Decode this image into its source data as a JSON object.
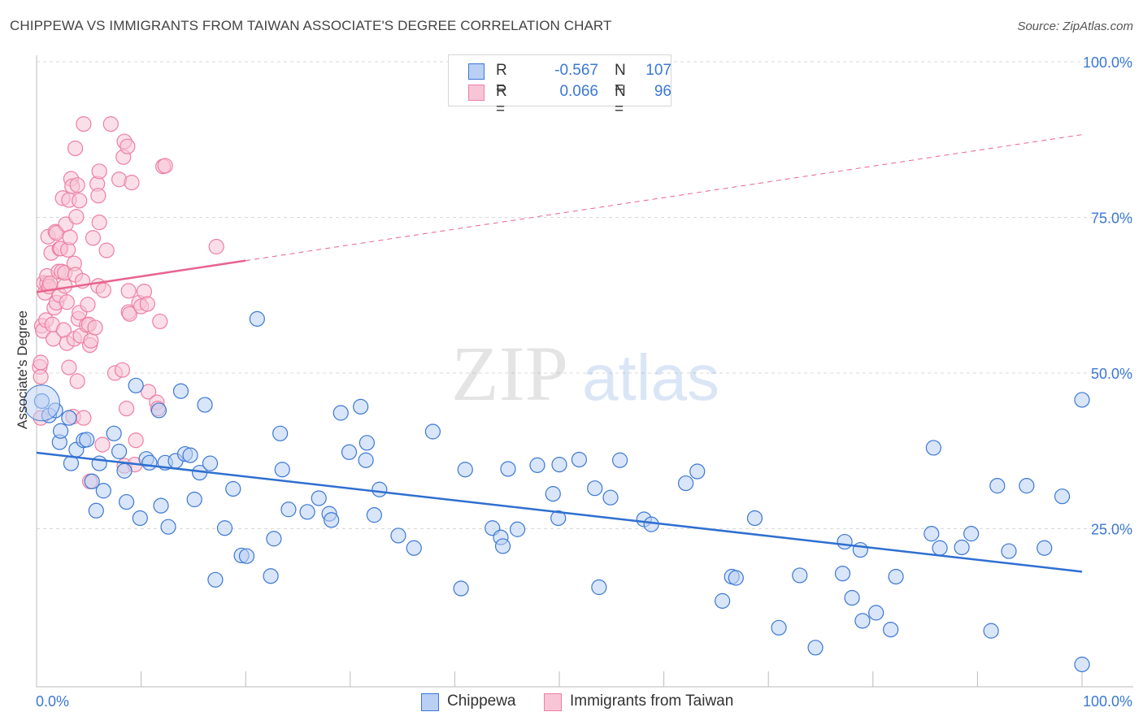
{
  "header": {
    "title": "CHIPPEWA VS IMMIGRANTS FROM TAIWAN ASSOCIATE'S DEGREE CORRELATION CHART",
    "source": "Source: ZipAtlas.com"
  },
  "legend": {
    "rows": [
      {
        "r_label": "R =",
        "r_value": "-0.567",
        "n_label": "N =",
        "n_value": "107"
      },
      {
        "r_label": "R =",
        "r_value": "0.066",
        "n_label": "N =",
        "n_value": "96"
      }
    ]
  },
  "watermark": {
    "zip": "ZIP",
    "atlas": "atlas"
  },
  "colors": {
    "blue": "#3b78d4",
    "blue_fill": "#b9d0f4",
    "blue_line": "#2f6fd0",
    "pink": "#ee7fa3",
    "pink_fill": "#f8c5d6",
    "pink_line": "#e8648f",
    "grid": "#d9d9d9",
    "axis_label": "#3b78d4"
  },
  "chart_data": {
    "type": "scatter",
    "title": "CHIPPEWA VS IMMIGRANTS FROM TAIWAN ASSOCIATE'S DEGREE CORRELATION CHART",
    "xlabel": "",
    "ylabel": "Associate's Degree",
    "xlim": [
      0,
      100
    ],
    "ylim": [
      0,
      105
    ],
    "x_tick_labels": [
      "0.0%",
      "100.0%"
    ],
    "y_ticks": [
      25,
      50,
      75,
      100
    ],
    "y_tick_labels": [
      "25.0%",
      "50.0%",
      "75.0%",
      "100.0%"
    ],
    "grid": true,
    "legend_position": "top-center",
    "series": [
      {
        "name": "Chippewa",
        "r": -0.567,
        "n": 107,
        "trend": {
          "x": [
            0,
            100
          ],
          "y": [
            37.2,
            18.1
          ],
          "dashed_from": null
        },
        "points": [
          [
            0.5,
            45.5
          ],
          [
            1.2,
            43.2
          ],
          [
            2.2,
            38.9
          ],
          [
            2.3,
            40.7
          ],
          [
            3.1,
            42.8
          ],
          [
            3.3,
            35.5
          ],
          [
            3.8,
            37.7
          ],
          [
            4.5,
            39.2
          ],
          [
            4.8,
            39.3
          ],
          [
            5.3,
            32.6
          ],
          [
            5.7,
            27.9
          ],
          [
            6.4,
            31.1
          ],
          [
            7.4,
            40.3
          ],
          [
            7.9,
            37.4
          ],
          [
            8.4,
            34.3
          ],
          [
            8.6,
            29.3
          ],
          [
            9.5,
            48.0
          ],
          [
            9.9,
            26.7
          ],
          [
            10.5,
            36.2
          ],
          [
            10.8,
            35.6
          ],
          [
            11.7,
            44.0
          ],
          [
            11.9,
            28.7
          ],
          [
            12.3,
            35.6
          ],
          [
            12.6,
            25.3
          ],
          [
            13.3,
            35.9
          ],
          [
            13.8,
            47.1
          ],
          [
            14.2,
            37.0
          ],
          [
            14.7,
            36.8
          ],
          [
            15.1,
            29.7
          ],
          [
            15.6,
            34.0
          ],
          [
            16.1,
            44.9
          ],
          [
            16.6,
            35.5
          ],
          [
            17.1,
            16.8
          ],
          [
            18.0,
            25.1
          ],
          [
            18.8,
            31.4
          ],
          [
            19.6,
            20.7
          ],
          [
            20.1,
            20.6
          ],
          [
            21.1,
            58.7
          ],
          [
            22.4,
            17.4
          ],
          [
            22.7,
            23.4
          ],
          [
            23.3,
            40.3
          ],
          [
            23.5,
            34.5
          ],
          [
            24.1,
            28.1
          ],
          [
            25.9,
            27.7
          ],
          [
            27.0,
            29.9
          ],
          [
            28.0,
            27.4
          ],
          [
            28.2,
            26.4
          ],
          [
            29.1,
            43.6
          ],
          [
            29.9,
            37.3
          ],
          [
            31.0,
            44.6
          ],
          [
            31.5,
            36.0
          ],
          [
            31.6,
            38.8
          ],
          [
            32.3,
            27.2
          ],
          [
            32.8,
            31.3
          ],
          [
            34.6,
            23.9
          ],
          [
            36.1,
            21.9
          ],
          [
            37.9,
            40.6
          ],
          [
            40.6,
            15.4
          ],
          [
            41.0,
            34.5
          ],
          [
            43.6,
            25.1
          ],
          [
            44.4,
            23.6
          ],
          [
            44.6,
            22.2
          ],
          [
            45.1,
            34.6
          ],
          [
            46.0,
            24.9
          ],
          [
            47.9,
            35.2
          ],
          [
            49.4,
            30.6
          ],
          [
            49.9,
            26.7
          ],
          [
            50.0,
            35.3
          ],
          [
            51.9,
            36.1
          ],
          [
            53.4,
            31.5
          ],
          [
            53.8,
            15.6
          ],
          [
            54.9,
            30.0
          ],
          [
            55.8,
            36.0
          ],
          [
            58.1,
            26.5
          ],
          [
            58.8,
            25.7
          ],
          [
            62.1,
            32.3
          ],
          [
            63.2,
            34.2
          ],
          [
            65.6,
            13.4
          ],
          [
            66.5,
            17.3
          ],
          [
            66.9,
            17.1
          ],
          [
            68.7,
            26.7
          ],
          [
            71.0,
            9.1
          ],
          [
            73.0,
            17.5
          ],
          [
            74.5,
            5.9
          ],
          [
            77.1,
            17.8
          ],
          [
            77.3,
            22.9
          ],
          [
            78.0,
            13.9
          ],
          [
            78.8,
            21.6
          ],
          [
            79.0,
            10.2
          ],
          [
            80.3,
            11.5
          ],
          [
            81.7,
            8.8
          ],
          [
            82.2,
            17.3
          ],
          [
            85.6,
            24.2
          ],
          [
            85.8,
            38.0
          ],
          [
            86.4,
            21.9
          ],
          [
            88.5,
            22.0
          ],
          [
            89.4,
            24.2
          ],
          [
            91.3,
            8.6
          ],
          [
            91.9,
            31.9
          ],
          [
            93.0,
            21.4
          ],
          [
            94.7,
            31.9
          ],
          [
            96.4,
            21.9
          ],
          [
            98.1,
            30.2
          ],
          [
            100.0,
            3.2
          ],
          [
            100.0,
            45.7
          ],
          [
            1.8,
            44.0
          ],
          [
            6.0,
            35.5
          ]
        ]
      },
      {
        "name": "Immigrants from Taiwan",
        "r": 0.066,
        "n": 96,
        "trend": {
          "x": [
            0,
            100
          ],
          "y": [
            63.0,
            88.3
          ],
          "solid_to_x": 20
        },
        "points": [
          [
            0.4,
            42.8
          ],
          [
            0.3,
            51.0
          ],
          [
            0.4,
            51.7
          ],
          [
            0.4,
            49.4
          ],
          [
            0.5,
            57.6
          ],
          [
            0.6,
            56.8
          ],
          [
            0.8,
            62.9
          ],
          [
            0.7,
            64.5
          ],
          [
            0.9,
            58.5
          ],
          [
            1.0,
            64.4
          ],
          [
            1.1,
            71.9
          ],
          [
            1.0,
            65.6
          ],
          [
            1.2,
            63.9
          ],
          [
            1.3,
            64.4
          ],
          [
            1.4,
            69.3
          ],
          [
            1.5,
            57.8
          ],
          [
            1.6,
            55.5
          ],
          [
            1.7,
            60.5
          ],
          [
            1.8,
            72.7
          ],
          [
            1.9,
            61.3
          ],
          [
            1.9,
            72.5
          ],
          [
            2.1,
            66.3
          ],
          [
            2.2,
            70.0
          ],
          [
            2.2,
            62.5
          ],
          [
            2.3,
            70.0
          ],
          [
            2.4,
            66.3
          ],
          [
            2.5,
            78.1
          ],
          [
            2.6,
            56.9
          ],
          [
            2.7,
            64.0
          ],
          [
            2.7,
            66.1
          ],
          [
            2.8,
            73.9
          ],
          [
            2.9,
            61.4
          ],
          [
            2.9,
            54.8
          ],
          [
            3.0,
            69.8
          ],
          [
            3.1,
            77.8
          ],
          [
            3.1,
            50.9
          ],
          [
            3.2,
            71.8
          ],
          [
            3.3,
            81.2
          ],
          [
            3.4,
            80.0
          ],
          [
            3.5,
            43.0
          ],
          [
            3.6,
            55.5
          ],
          [
            3.6,
            67.6
          ],
          [
            3.7,
            86.1
          ],
          [
            3.7,
            65.8
          ],
          [
            3.8,
            75.1
          ],
          [
            3.9,
            80.2
          ],
          [
            3.9,
            48.7
          ],
          [
            4.0,
            58.7
          ],
          [
            4.1,
            77.7
          ],
          [
            4.1,
            59.7
          ],
          [
            4.2,
            56.0
          ],
          [
            4.4,
            64.8
          ],
          [
            4.5,
            42.8
          ],
          [
            4.5,
            90.0
          ],
          [
            4.8,
            57.7
          ],
          [
            4.9,
            61.0
          ],
          [
            5.0,
            57.8
          ],
          [
            5.1,
            32.6
          ],
          [
            5.1,
            54.5
          ],
          [
            5.2,
            55.2
          ],
          [
            5.4,
            71.7
          ],
          [
            5.6,
            57.3
          ],
          [
            5.8,
            80.4
          ],
          [
            5.9,
            64.0
          ],
          [
            5.9,
            78.5
          ],
          [
            6.0,
            82.4
          ],
          [
            6.0,
            74.2
          ],
          [
            6.4,
            63.3
          ],
          [
            6.7,
            69.7
          ],
          [
            7.1,
            90.0
          ],
          [
            7.5,
            50.0
          ],
          [
            7.9,
            81.1
          ],
          [
            8.2,
            50.5
          ],
          [
            8.3,
            84.7
          ],
          [
            8.4,
            87.2
          ],
          [
            8.4,
            35.1
          ],
          [
            8.6,
            44.3
          ],
          [
            8.7,
            86.4
          ],
          [
            8.8,
            59.8
          ],
          [
            8.8,
            63.2
          ],
          [
            8.9,
            59.5
          ],
          [
            9.1,
            80.6
          ],
          [
            9.4,
            35.3
          ],
          [
            9.5,
            39.2
          ],
          [
            9.8,
            61.3
          ],
          [
            10.0,
            60.7
          ],
          [
            10.3,
            63.1
          ],
          [
            10.6,
            61.1
          ],
          [
            10.7,
            47.0
          ],
          [
            11.5,
            45.3
          ],
          [
            11.6,
            44.3
          ],
          [
            11.8,
            58.3
          ],
          [
            12.1,
            83.2
          ],
          [
            12.3,
            83.3
          ],
          [
            17.2,
            70.3
          ],
          [
            6.3,
            38.5
          ]
        ]
      }
    ]
  }
}
